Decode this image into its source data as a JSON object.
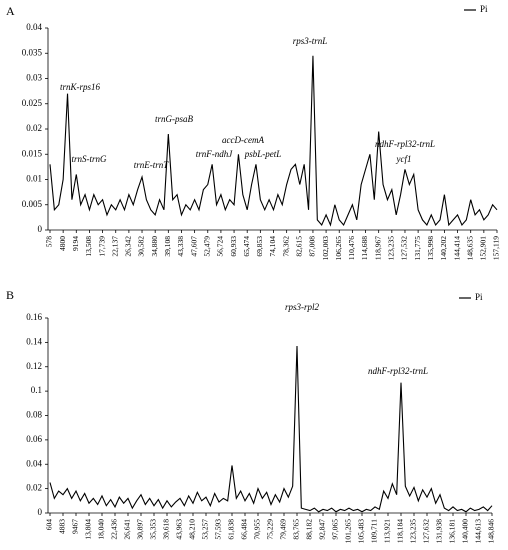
{
  "chart_data": [
    {
      "type": "line",
      "panel": "A",
      "categories": [
        "578",
        null,
        null,
        "4800",
        null,
        null,
        "9194",
        null,
        null,
        "13,508",
        null,
        null,
        "17,739",
        null,
        null,
        "22,137",
        null,
        null,
        "26,342",
        null,
        null,
        "30,582",
        null,
        null,
        "34,880",
        null,
        null,
        "39,108",
        null,
        null,
        "43,338",
        null,
        null,
        "47,607",
        null,
        null,
        "52,479",
        null,
        null,
        "56,724",
        null,
        null,
        "60,933",
        null,
        null,
        "65,474",
        null,
        null,
        "69,853",
        null,
        null,
        "74,104",
        null,
        null,
        "78,362",
        null,
        null,
        "82,615",
        null,
        null,
        "87,008",
        null,
        null,
        "102,003",
        null,
        null,
        "106,265",
        null,
        null,
        "110,476",
        null,
        null,
        "114,688",
        null,
        null,
        "118,967",
        null,
        null,
        "123,235",
        null,
        null,
        "127,532",
        null,
        null,
        "131,775",
        null,
        null,
        "135,998",
        null,
        null,
        "140,202",
        null,
        null,
        "144,414",
        null,
        null,
        "148,635",
        null,
        null,
        "152,901",
        null,
        null,
        "157,119"
      ],
      "series": [
        {
          "name": "Pi",
          "color": "#000000",
          "values": [
            0.013,
            0.004,
            0.005,
            0.01,
            0.027,
            0.006,
            0.011,
            0.005,
            0.007,
            0.004,
            0.007,
            0.005,
            0.006,
            0.003,
            0.005,
            0.004,
            0.006,
            0.004,
            0.007,
            0.005,
            0.008,
            0.0105,
            0.006,
            0.004,
            0.003,
            0.006,
            0.004,
            0.019,
            0.006,
            0.007,
            0.003,
            0.005,
            0.004,
            0.006,
            0.004,
            0.008,
            0.009,
            0.013,
            0.005,
            0.007,
            0.004,
            0.006,
            0.005,
            0.015,
            0.007,
            0.004,
            0.009,
            0.013,
            0.006,
            0.004,
            0.006,
            0.004,
            0.007,
            0.005,
            0.009,
            0.012,
            0.013,
            0.009,
            0.013,
            0.004,
            0.0345,
            0.002,
            0.001,
            0.003,
            0.001,
            0.005,
            0.002,
            0.001,
            0.003,
            0.005,
            0.002,
            0.009,
            0.012,
            0.015,
            0.006,
            0.0195,
            0.009,
            0.006,
            0.008,
            0.003,
            0.007,
            0.012,
            0.009,
            0.011,
            0.004,
            0.002,
            0.001,
            0.003,
            0.001,
            0.002,
            0.007,
            0.001,
            0.002,
            0.003,
            0.001,
            0.002,
            0.006,
            0.003,
            0.004,
            0.002,
            0.003,
            0.005,
            0.004
          ]
        }
      ],
      "ylim": [
        0,
        0.04
      ],
      "yticks": [
        0,
        0.005,
        0.01,
        0.015,
        0.02,
        0.025,
        0.03,
        0.035,
        0.04
      ],
      "annotations": [
        "trnK-rps16",
        "trnS-trnG",
        "trnE-trnT",
        "trnG-psaB",
        "trnF-ndhJ",
        "accD-cemA",
        "psbL-petL",
        "rps3-trnL",
        "ndhF-rpl32-trnL",
        "ycf1"
      ]
    },
    {
      "type": "line",
      "panel": "B",
      "categories": [
        "604",
        null,
        null,
        "4883",
        null,
        null,
        "9467",
        null,
        null,
        "13,804",
        null,
        null,
        "18,040",
        null,
        null,
        "22,436",
        null,
        null,
        "26,641",
        null,
        null,
        "30,897",
        null,
        null,
        "35,353",
        null,
        null,
        "39,618",
        null,
        null,
        "43,963",
        null,
        null,
        "48,210",
        null,
        null,
        "53,257",
        null,
        null,
        "57,593",
        null,
        null,
        "61,838",
        null,
        null,
        "66,484",
        null,
        null,
        "70,955",
        null,
        null,
        "75,229",
        null,
        null,
        "79,469",
        null,
        null,
        "83,765",
        null,
        null,
        "88,182",
        null,
        null,
        "92,847",
        null,
        null,
        "97,065",
        null,
        null,
        "101,265",
        null,
        null,
        "105,483",
        null,
        null,
        "109,711",
        null,
        null,
        "113,921",
        null,
        null,
        "118,184",
        null,
        null,
        "123,235",
        null,
        null,
        "127,632",
        null,
        null,
        "131,938",
        null,
        null,
        "136,181",
        null,
        null,
        "140,400",
        null,
        null,
        "144,613",
        null,
        null,
        "148,846"
      ],
      "series": [
        {
          "name": "Pi",
          "color": "#000000",
          "values": [
            0.025,
            0.012,
            0.018,
            0.015,
            0.02,
            0.012,
            0.018,
            0.01,
            0.016,
            0.008,
            0.012,
            0.007,
            0.014,
            0.006,
            0.011,
            0.005,
            0.013,
            0.008,
            0.012,
            0.004,
            0.01,
            0.015,
            0.007,
            0.012,
            0.006,
            0.011,
            0.004,
            0.01,
            0.005,
            0.009,
            0.012,
            0.006,
            0.014,
            0.008,
            0.017,
            0.01,
            0.013,
            0.006,
            0.016,
            0.009,
            0.012,
            0.01,
            0.039,
            0.012,
            0.018,
            0.01,
            0.016,
            0.008,
            0.02,
            0.012,
            0.017,
            0.007,
            0.015,
            0.009,
            0.02,
            0.013,
            0.022,
            0.137,
            0.004,
            0.003,
            0.002,
            0.004,
            0.001,
            0.003,
            0.002,
            0.004,
            0.001,
            0.003,
            0.002,
            0.004,
            0.002,
            0.003,
            0.001,
            0.003,
            0.002,
            0.005,
            0.003,
            0.018,
            0.012,
            0.024,
            0.015,
            0.107,
            0.022,
            0.014,
            0.021,
            0.01,
            0.019,
            0.013,
            0.02,
            0.008,
            0.015,
            0.004,
            0.002,
            0.005,
            0.002,
            0.003,
            0.001,
            0.004,
            0.002,
            0.003,
            0.005,
            0.002,
            0.006
          ]
        }
      ],
      "ylim": [
        0,
        0.16
      ],
      "yticks": [
        0,
        0.02,
        0.04,
        0.06,
        0.08,
        0.1,
        0.12,
        0.14,
        0.16
      ],
      "annotations": [
        "rps3-rpl2",
        "ndhF-rpl32-trnL"
      ]
    }
  ]
}
